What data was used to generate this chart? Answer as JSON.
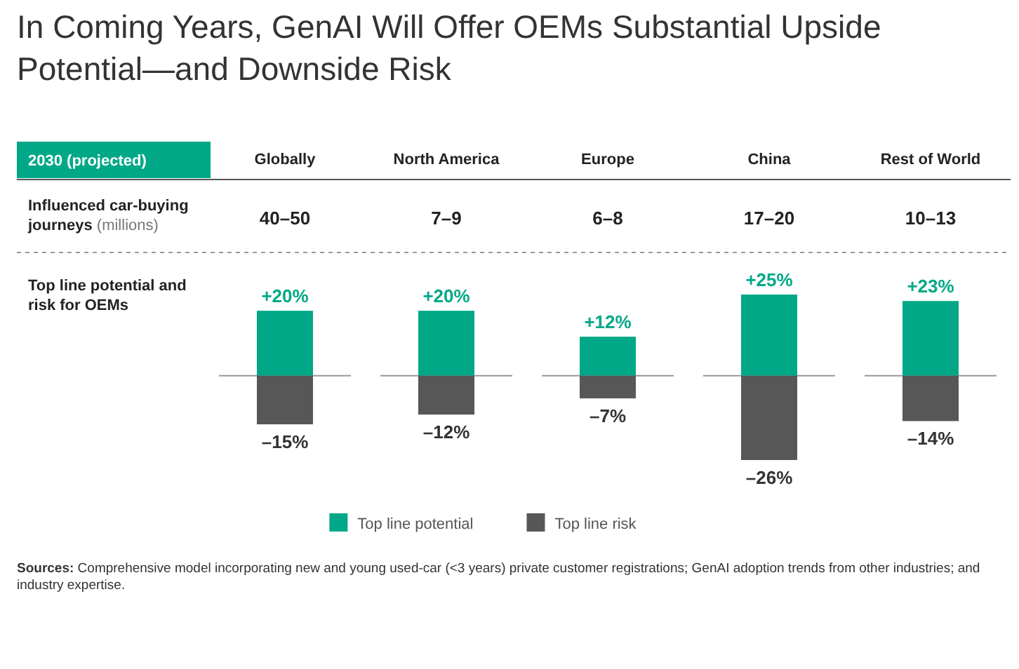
{
  "chart_data": {
    "type": "bar",
    "title": "In Coming Years, GenAI Will Offer OEMs Substantial Upside Potential—and Downside Risk",
    "stacked": true,
    "legend": "bottom",
    "ref_lines": [
      {
        "axis": "y",
        "value": 0,
        "color": "#999999"
      }
    ],
    "categories": [
      "Globally",
      "North America",
      "Europe",
      "China",
      "Rest of World"
    ],
    "series": [
      {
        "name": "Top line potential",
        "color": "#00a887",
        "values": [
          20,
          20,
          12,
          25,
          23
        ],
        "value_labels": [
          "+20%",
          "+20%",
          "+12%",
          "+25%",
          "+23%"
        ]
      },
      {
        "name": "Top line risk",
        "color": "#575757",
        "values": [
          -15,
          -12,
          -7,
          -26,
          -14
        ],
        "value_labels": [
          "–15%",
          "–12%",
          "–7%",
          "–26%",
          "–14%"
        ]
      }
    ],
    "annotations": [
      "2030 (projected)",
      "Influenced car-buying journeys (millions)",
      "40–50",
      "7–9",
      "6–8",
      "17–20",
      "10–13",
      "Top line potential and risk for OEMs",
      "Sources: Comprehensive model incorporating new and young used-car (<3 years) private customer registrations; GenAI adoption trends from other industries; and industry expertise."
    ]
  }
}
